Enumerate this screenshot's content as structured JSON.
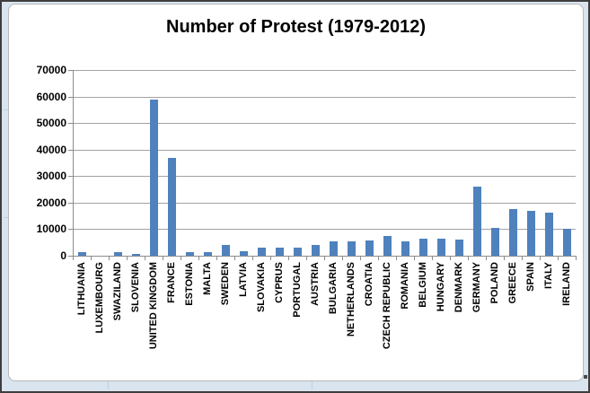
{
  "window": {
    "background_color": "#d9e4ef",
    "border_color": "#3e3e3e",
    "panel_color": "#ffffff"
  },
  "chart_data": {
    "type": "bar",
    "title": "Number of Protest (1979-2012)",
    "categories": [
      "LITHUANIA",
      "LUXEMBOURG",
      "SWAZILAND",
      "SLOVENIA",
      "UNITED KINGDOM",
      "FRANCE",
      "ESTONIA",
      "MALTA",
      "SWEDEN",
      "LATVIA",
      "SLOVAKIA",
      "CYPRUS",
      "PORTUGAL",
      "AUSTRIA",
      "BULGARIA",
      "NETHERLANDS",
      "CROATIA",
      "CZECH REPUBLIC",
      "ROMANIA",
      "BELGIUM",
      "HUNGARY",
      "DENMARK",
      "GERMANY",
      "POLAND",
      "GREECE",
      "SPAIN",
      "ITALY",
      "IRELAND"
    ],
    "values": [
      1500,
      100,
      1200,
      800,
      59000,
      37000,
      1200,
      1400,
      4000,
      1800,
      3000,
      2900,
      3200,
      4200,
      5300,
      5400,
      5800,
      7400,
      5400,
      6400,
      6500,
      6100,
      26000,
      10400,
      17500,
      17000,
      16400,
      10300
    ],
    "xlabel": "",
    "ylabel": "",
    "ylim": [
      0,
      70000
    ],
    "yticks": [
      0,
      10000,
      20000,
      30000,
      40000,
      50000,
      60000,
      70000
    ],
    "grid": true,
    "legend_position": "none",
    "bar_color": "#4f81bd",
    "gridline_color": "#a3a3a3"
  }
}
